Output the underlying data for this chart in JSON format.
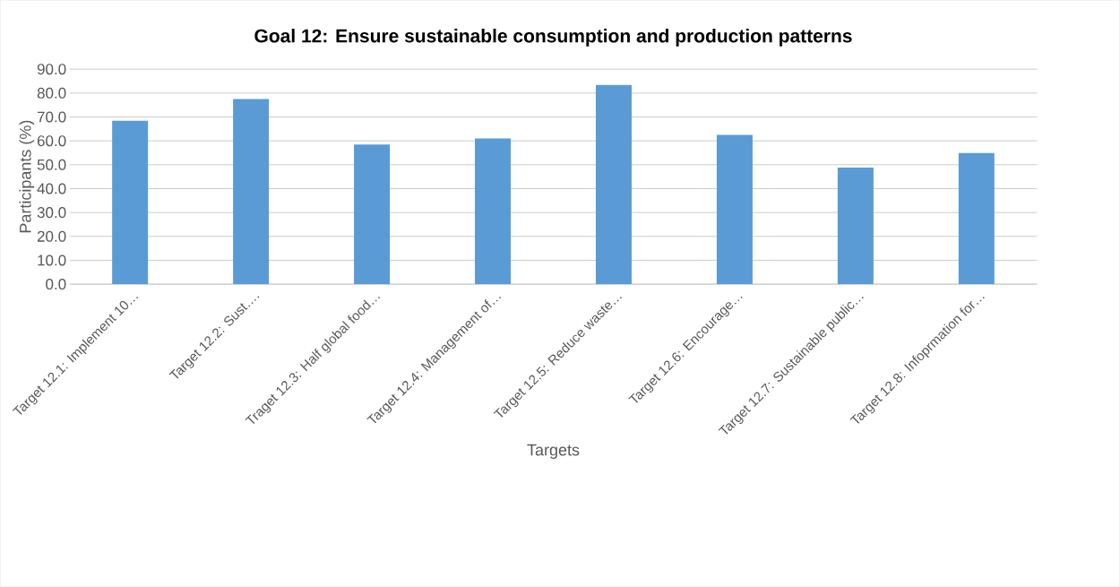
{
  "chart_data": {
    "type": "bar",
    "title": "Goal 12: Ensure sustainable consumption and production patterns",
    "xlabel": "Targets",
    "ylabel": "Participants (%)",
    "categories": [
      "Target 12.1: Implement 10…",
      "Target 12.2: Sust….",
      "Traget 12.3: Half global food…",
      "Target 12.4: Management of…",
      "Target 12.5: Reduce waste…",
      "Target 12.6: Encourage…",
      "Target 12.7: Sustainable public…",
      "Target 12.8:  Infoprmation for…"
    ],
    "values": [
      68.4,
      77.5,
      58.5,
      61.0,
      83.4,
      62.5,
      48.8,
      54.9
    ],
    "color": "#5b9bd5",
    "ylim": [
      0,
      90
    ],
    "yticks": [
      {
        "value": 0,
        "label": "0.0"
      },
      {
        "value": 10,
        "label": "10.0"
      },
      {
        "value": 20,
        "label": "20.0"
      },
      {
        "value": 30,
        "label": "30.0"
      },
      {
        "value": 40,
        "label": "40.0"
      },
      {
        "value": 50,
        "label": "50.0"
      },
      {
        "value": 60,
        "label": "60.0"
      },
      {
        "value": 70,
        "label": "70.0"
      },
      {
        "value": 80,
        "label": "80.0"
      },
      {
        "value": 90,
        "label": "90.0"
      }
    ],
    "grid": "y"
  }
}
